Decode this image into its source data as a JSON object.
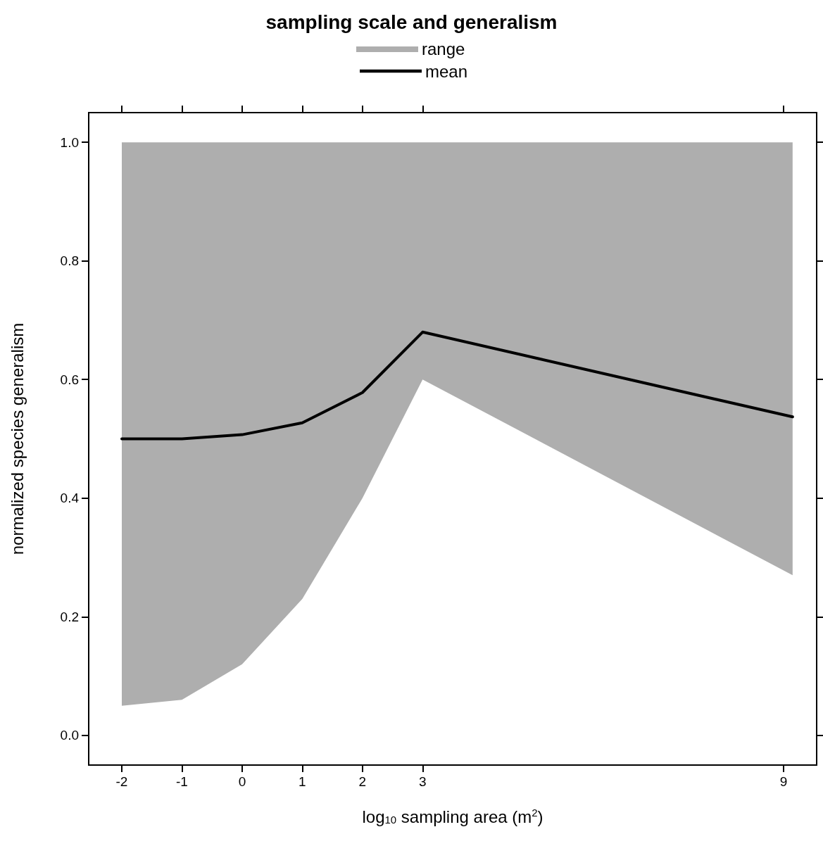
{
  "chart_data": {
    "type": "line",
    "title": "sampling scale and generalism",
    "xlabel": "log$_{10}$ sampling area (m$^{2}$)",
    "ylabel": "normalized species generalism",
    "x": [
      -2,
      -1,
      0,
      1,
      2,
      3,
      9.15
    ],
    "series": [
      {
        "name": "mean",
        "color": "#000000",
        "values": [
          0.5,
          0.5,
          0.507,
          0.527,
          0.578,
          0.68,
          0.537
        ],
        "upper": [
          1.0,
          1.0,
          1.0,
          1.0,
          1.0,
          1.0,
          1.0
        ],
        "lower": [
          0.05,
          0.06,
          0.12,
          0.23,
          0.4,
          0.6,
          0.27
        ]
      }
    ],
    "annotations": [
      "range"
    ],
    "xlim": [
      -2.55,
      9.55
    ],
    "xticks": [
      -2,
      -1,
      0,
      1,
      2,
      3,
      9
    ],
    "ylim": [
      -0.05,
      1.05
    ],
    "yticks": [
      {
        "value": 0,
        "label": "0.0"
      },
      0.2,
      0.4,
      0.6,
      0.8,
      {
        "value": 1,
        "label": "1.0"
      }
    ],
    "grid": false,
    "legend": "top",
    "marker": "none",
    "line_style": "solid"
  }
}
